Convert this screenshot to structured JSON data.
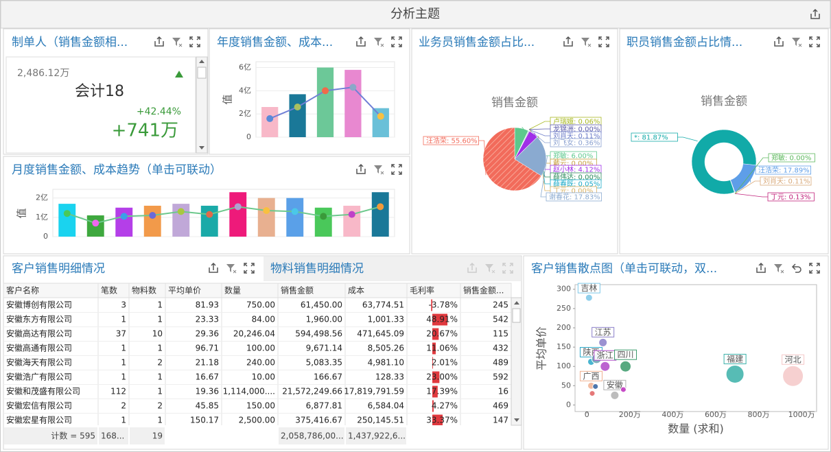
{
  "header": {
    "title": "分析主题"
  },
  "kpi": {
    "title": "制单人（销售金额相...",
    "reference": "2,486.12万",
    "name": "会计18",
    "change_pct": "+42.44%",
    "change": "+741万"
  },
  "chart_data": [
    {
      "type": "combo",
      "title": "年度销售金额、成本...",
      "ylabel": "值",
      "categories": [
        null,
        null,
        null,
        null,
        null
      ],
      "series": [
        {
          "type": "bar",
          "colors": [
            "#f8b8c8",
            "#1a7898",
            "#6cc898",
            "#e888d0",
            "#6ac0d8"
          ],
          "values": [
            2.6,
            3.7,
            6.0,
            5.8,
            2.5
          ]
        },
        {
          "type": "line",
          "color": "#6f7fd6",
          "marker_colors": [
            "#5a8ad8",
            "#a8c060",
            "#f06a4a",
            "#8aa8c8",
            "#f8c040"
          ],
          "values": [
            1.6,
            2.6,
            4.0,
            4.3,
            1.8
          ]
        }
      ],
      "ylim": [
        0,
        6.5
      ],
      "yticks": [
        0,
        {
          "value": 2,
          "label": "2亿"
        },
        {
          "value": 4,
          "label": "4亿"
        },
        {
          "value": 6,
          "label": "6亿"
        }
      ],
      "grid": true
    },
    {
      "type": "combo",
      "title": "月度销售金额、成本趋势（单击可联动）",
      "ylabel": "值",
      "categories": [
        null,
        null,
        null,
        null,
        null,
        null,
        null,
        null,
        null,
        null,
        null,
        null
      ],
      "series": [
        {
          "type": "bar",
          "colors": [
            "#1ad3ef",
            "#3ea83e",
            "#b43fe8",
            "#f29a4a",
            "#c0a8d8",
            "#1aaaa8",
            "#ee1a7a",
            "#e8b090",
            "#5aa0e8",
            "#4ac85a",
            "#f8b8c8",
            "#1a7898"
          ],
          "values": [
            1.7,
            1.1,
            1.5,
            1.6,
            1.7,
            1.6,
            2.3,
            2.0,
            2.0,
            1.5,
            1.6,
            2.3
          ]
        },
        {
          "type": "line",
          "color": "#6cc88c",
          "marker_colors": [
            "#4ac85a",
            "#ee66ee",
            "#3aa0e8",
            "#6a6ad8",
            "#a8c840",
            "#e06a4a",
            "#b0a0d0",
            "#f8c040",
            "#4ac8e8",
            "#3a9a3a",
            "#c040c8",
            "#f29a3a"
          ],
          "values": [
            1.2,
            0.7,
            1.05,
            1.1,
            1.3,
            1.15,
            1.55,
            1.35,
            1.3,
            1.05,
            1.15,
            1.55
          ]
        }
      ],
      "ylim": [
        0,
        2.45
      ],
      "yticks": [
        0,
        {
          "value": 1,
          "label": "1亿"
        },
        {
          "value": 2,
          "label": "2亿"
        }
      ],
      "grid": true
    },
    {
      "type": "pie",
      "title": "业务员销售金额占比...",
      "subtitle": "销售金额",
      "selected": 11,
      "values": [
        6.0,
        0.06,
        0.0,
        0.11,
        0.36,
        0.0,
        4.12,
        0.0,
        0.05,
        0.0,
        17.83,
        55.6
      ],
      "value_labels": [
        "郑敏: 6.00%",
        "卢瑞娥: 0.06%",
        "龙锦洲: 0.00%",
        "刘肖天: 0.11%",
        "刘飞女: 0.36%",
        "戴云: 0.00%",
        "赵小林: 4.12%",
        "薛伟达: 0.00%",
        "薛春既: 0.05%",
        "丁元: 0.00%",
        "谢春花: 17.83%",
        "汪浩荣: 55.60%"
      ],
      "colors": [
        "#5cc88c",
        "#a8b820",
        "#5a5aa8",
        "#6a7ac8",
        "#8aa0d0",
        "#c8a040",
        "#a030e8",
        "#2a8a5a",
        "#1aaac8",
        "#d8b060",
        "#8aaad0",
        "#f26b5b"
      ]
    },
    {
      "type": "donut",
      "title": "职员销售金额占比情...",
      "subtitle": "销售金额",
      "values": [
        17.89,
        0.11,
        0.13,
        0.0,
        81.87
      ],
      "value_labels": [
        "汪浩荣: 17.89%",
        "刘肖天: 0.11%",
        "丁元: 0.13%",
        "郑敏: 0.00%",
        "*: 81.87%"
      ],
      "colors": [
        "#5e9ee8",
        "#d8a878",
        "#c0207a",
        "#5cb85c",
        "#11aaa8"
      ]
    },
    {
      "type": "scatter",
      "title": "客户销售散点图（单击可联动，双...",
      "xlabel": "数量 (求和)",
      "ylabel": "平均单价",
      "x": [
        10,
        75,
        20,
        45,
        85,
        180,
        690,
        960,
        20,
        25,
        130,
        170,
        40
      ],
      "y": [
        278,
        162,
        112,
        120,
        100,
        100,
        80,
        75,
        50,
        30,
        25,
        40,
        48
      ],
      "sizes": [
        5,
        6,
        5,
        7,
        7,
        8,
        13,
        15,
        5,
        4,
        6,
        4,
        4
      ],
      "labels": [
        "吉林",
        "江苏",
        "陕西",
        null,
        "浙江",
        "四川",
        "福建",
        "河北",
        "广西",
        null,
        "安徽",
        null,
        null
      ],
      "colors": [
        "#7cc7e8",
        "#8a7fc9",
        "#2aa8c8",
        "#6aa0b0",
        "#b048c8",
        "#3a9a6a",
        "#3ab0a8",
        "#f5c8c8",
        "#f0b090",
        "#e06060",
        "#b0b0b0",
        "#c030c0",
        "#3060a0"
      ],
      "xlim": [
        -55,
        1070
      ],
      "ylim": [
        -17,
        312
      ],
      "xticks": [
        0,
        {
          "value": 200,
          "label": "200万"
        },
        {
          "value": 400,
          "label": "400万"
        },
        {
          "value": 600,
          "label": "600万"
        },
        {
          "value": 800,
          "label": "800万"
        },
        {
          "value": 1000,
          "label": "1000万"
        }
      ],
      "yticks": [
        0,
        50,
        100,
        150,
        200,
        250,
        300
      ]
    }
  ],
  "table": {
    "tabs": [
      "客户销售明细情况",
      "物料销售明细情况"
    ],
    "columns": [
      "客户名称",
      "笔数",
      "物料数",
      "平均单价",
      "数量",
      "销售金额",
      "成本",
      "毛利率",
      "销售金额..."
    ],
    "rows": [
      [
        "安徽博创有限公司",
        "3",
        "1",
        "81.93",
        "750.00",
        "61,450.00",
        "63,774.51",
        "-3.78%",
        "245"
      ],
      [
        "安徽东方有限公司",
        "1",
        "1",
        "23.33",
        "84.00",
        "1,960.00",
        "1,001.33",
        "48.91%",
        "542"
      ],
      [
        "安徽高达有限公司",
        "37",
        "10",
        "29.36",
        "20,246.04",
        "594,498.56",
        "471,645.09",
        "20.67%",
        "115"
      ],
      [
        "安徽高通有限公司",
        "1",
        "1",
        "96.71",
        "100.00",
        "9,671.14",
        "8,505.26",
        "11.06%",
        "432"
      ],
      [
        "安徽海天有限公司",
        "1",
        "2",
        "21.18",
        "240.00",
        "5,083.35",
        "4,981.10",
        "2.01%",
        "489"
      ],
      [
        "安徽浩广有限公司",
        "1",
        "1",
        "16.67",
        "10.00",
        "166.67",
        "128.33",
        "23.00%",
        "592"
      ],
      [
        "安徽和茂盛有限公司",
        "112",
        "1",
        "19.36",
        "1,114,000....",
        "21,572,249.66",
        "17,819,791.59",
        "17.39%",
        "16"
      ],
      [
        "安徽宏信有限公司",
        "2",
        "2",
        "45.85",
        "150.00",
        "6,877.81",
        "6,584.04",
        "4.27%",
        "469"
      ],
      [
        "安徽宏星有限公司",
        "1",
        "1",
        "150.17",
        "2,500.00",
        "375,416.67",
        "250,145.51",
        "33.37%",
        "147"
      ]
    ],
    "footer": [
      "计数 = 595",
      "168...",
      "19",
      null,
      null,
      "2,058,786,00...",
      "1,437,922,6...",
      null,
      null
    ]
  }
}
